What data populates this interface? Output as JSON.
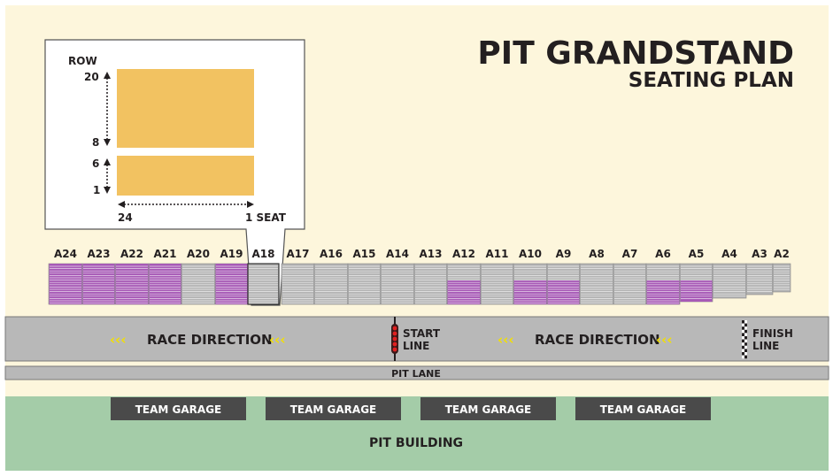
{
  "title": {
    "line1": "PIT GRANDSTAND",
    "line2": "SEATING PLAN"
  },
  "inset": {
    "row_label": "ROW",
    "row_top": "20",
    "row_upper_bottom": "8",
    "row_lower_top": "6",
    "row_bottom": "1",
    "width_label": "24",
    "seat_label": "1 SEAT"
  },
  "sections": [
    "A24",
    "A23",
    "A22",
    "A21",
    "A20",
    "A19",
    "A18",
    "A17",
    "A16",
    "A15",
    "A14",
    "A13",
    "A12",
    "A11",
    "A10",
    "A9",
    "A8",
    "A7",
    "A6",
    "A5",
    "A4",
    "A3",
    "A2"
  ],
  "track": {
    "race_direction_left": "RACE DIRECTION",
    "race_direction_right": "RACE DIRECTION",
    "start_line_1": "START",
    "start_line_2": "LINE",
    "finish_line_1": "FINISH",
    "finish_line_2": "LINE",
    "direction_arrows": "‹‹‹"
  },
  "pit_lane": "PIT LANE",
  "garages": [
    "TEAM GARAGE",
    "TEAM GARAGE",
    "TEAM GARAGE",
    "TEAM GARAGE"
  ],
  "pit_building": "PIT BUILDING",
  "colors": {
    "background": "#fdf6dc",
    "seat_block": "#f2c261",
    "purple": "#a75ab6",
    "grey_seat": "#b4b4b4",
    "track": "#b8b8b8",
    "building": "#a4cca8",
    "garage": "#4a4a4a",
    "arrow": "#f3e000",
    "title": "#231f20"
  }
}
